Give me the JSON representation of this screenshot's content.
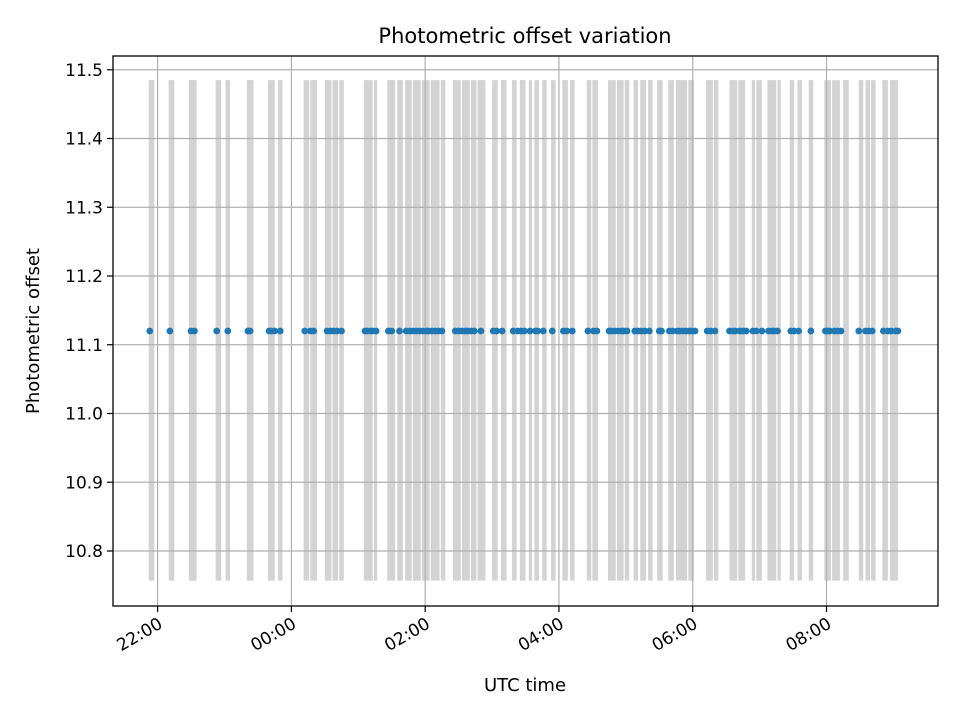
{
  "chart_data": {
    "type": "scatter",
    "title": "Photometric offset variation",
    "xlabel": "UTC time",
    "ylabel": "Photometric offset",
    "x_is_time": true,
    "x_range": [
      "21:20",
      "09:40"
    ],
    "ylim": [
      10.72,
      11.52
    ],
    "xticks": [
      "22:00",
      "00:00",
      "02:00",
      "04:00",
      "06:00",
      "08:00"
    ],
    "yticks": [
      10.8,
      10.9,
      11.0,
      11.1,
      11.2,
      11.3,
      11.4,
      11.5
    ],
    "grid": true,
    "colors": {
      "points": "#1f77b4",
      "bands": "#d3d3d3",
      "grid": "#b0b0b0"
    },
    "observation_windows": [
      [
        "21:52",
        "21:57"
      ],
      [
        "22:10",
        "22:15"
      ],
      [
        "22:28",
        "22:35"
      ],
      [
        "22:52",
        "22:57"
      ],
      [
        "23:01",
        "23:05"
      ],
      [
        "23:20",
        "23:26"
      ],
      [
        "23:39",
        "23:45"
      ],
      [
        "23:48",
        "23:52"
      ],
      [
        "00:11",
        "00:16"
      ],
      [
        "00:17",
        "00:23"
      ],
      [
        "00:30",
        "00:36"
      ],
      [
        "00:37",
        "00:42"
      ],
      [
        "00:43",
        "00:47"
      ],
      [
        "01:05",
        "01:13"
      ],
      [
        "01:14",
        "01:17"
      ],
      [
        "01:26",
        "01:33"
      ],
      [
        "01:35",
        "01:40"
      ],
      [
        "01:42",
        "01:48"
      ],
      [
        "01:49",
        "01:56"
      ],
      [
        "01:57",
        "02:04"
      ],
      [
        "02:05",
        "02:13"
      ],
      [
        "02:14",
        "02:18"
      ],
      [
        "02:25",
        "02:32"
      ],
      [
        "02:33",
        "02:40"
      ],
      [
        "02:41",
        "02:46"
      ],
      [
        "02:47",
        "02:54"
      ],
      [
        "03:00",
        "03:05"
      ],
      [
        "03:08",
        "03:13"
      ],
      [
        "03:18",
        "03:22"
      ],
      [
        "03:25",
        "03:30"
      ],
      [
        "03:33",
        "03:36"
      ],
      [
        "03:38",
        "03:42"
      ],
      [
        "03:45",
        "03:49"
      ],
      [
        "03:53",
        "03:57"
      ],
      [
        "04:03",
        "04:08"
      ],
      [
        "04:10",
        "04:14"
      ],
      [
        "04:25",
        "04:29"
      ],
      [
        "04:30",
        "04:35"
      ],
      [
        "04:44",
        "04:51"
      ],
      [
        "04:52",
        "04:58"
      ],
      [
        "04:59",
        "05:03"
      ],
      [
        "05:07",
        "05:11"
      ],
      [
        "05:13",
        "05:18"
      ],
      [
        "05:20",
        "05:24"
      ],
      [
        "05:28",
        "05:33"
      ],
      [
        "05:38",
        "05:43"
      ],
      [
        "05:45",
        "05:55"
      ],
      [
        "05:56",
        "06:01"
      ],
      [
        "06:12",
        "06:18"
      ],
      [
        "06:19",
        "06:23"
      ],
      [
        "06:33",
        "06:40"
      ],
      [
        "06:41",
        "06:47"
      ],
      [
        "06:53",
        "06:56"
      ],
      [
        "06:57",
        "07:02"
      ],
      [
        "07:07",
        "07:15"
      ],
      [
        "07:16",
        "07:19"
      ],
      [
        "07:27",
        "07:31"
      ],
      [
        "07:34",
        "07:38"
      ],
      [
        "07:44",
        "07:48"
      ],
      [
        "07:58",
        "08:04"
      ],
      [
        "08:05",
        "08:12"
      ],
      [
        "08:15",
        "08:20"
      ],
      [
        "08:29",
        "08:33"
      ],
      [
        "08:35",
        "08:39"
      ],
      [
        "08:40",
        "08:44"
      ],
      [
        "08:50",
        "08:55"
      ],
      [
        "08:57",
        "09:04"
      ]
    ],
    "series": [
      {
        "y": 11.12,
        "x": [
          "21:53",
          "22:11",
          "22:30",
          "22:33",
          "22:53",
          "23:03",
          "23:21",
          "23:23",
          "23:40",
          "23:42",
          "23:45",
          "23:50",
          "00:12",
          "00:17",
          "00:20",
          "00:32",
          "00:35",
          "00:38",
          "00:41",
          "00:45",
          "01:06",
          "01:08",
          "01:11",
          "01:13",
          "01:16",
          "01:27",
          "01:30",
          "01:37",
          "01:43",
          "01:46",
          "01:49",
          "01:52",
          "01:55",
          "01:58",
          "02:01",
          "02:03",
          "02:06",
          "02:09",
          "02:12",
          "02:15",
          "02:27",
          "02:30",
          "02:33",
          "02:36",
          "02:38",
          "02:41",
          "02:44",
          "02:50",
          "03:01",
          "03:04",
          "03:09",
          "03:19",
          "03:23",
          "03:26",
          "03:29",
          "03:34",
          "03:39",
          "03:41",
          "03:46",
          "03:54",
          "04:04",
          "04:07",
          "04:12",
          "04:26",
          "04:31",
          "04:34",
          "04:45",
          "04:47",
          "04:50",
          "04:53",
          "04:56",
          "04:58",
          "05:01",
          "05:08",
          "05:11",
          "05:14",
          "05:17",
          "05:21",
          "05:30",
          "05:32",
          "05:39",
          "05:42",
          "05:46",
          "05:48",
          "05:51",
          "05:54",
          "05:57",
          "05:59",
          "06:02",
          "06:13",
          "06:16",
          "06:20",
          "06:33",
          "06:36",
          "06:38",
          "06:42",
          "06:45",
          "06:48",
          "06:54",
          "06:57",
          "07:02",
          "07:08",
          "07:11",
          "07:13",
          "07:16",
          "07:28",
          "07:31",
          "07:35",
          "07:46",
          "07:59",
          "08:01",
          "08:03",
          "08:07",
          "08:10",
          "08:13",
          "08:29",
          "08:35",
          "08:38",
          "08:41",
          "08:51",
          "08:55",
          "08:58",
          "09:02",
          "09:04"
        ]
      }
    ]
  }
}
